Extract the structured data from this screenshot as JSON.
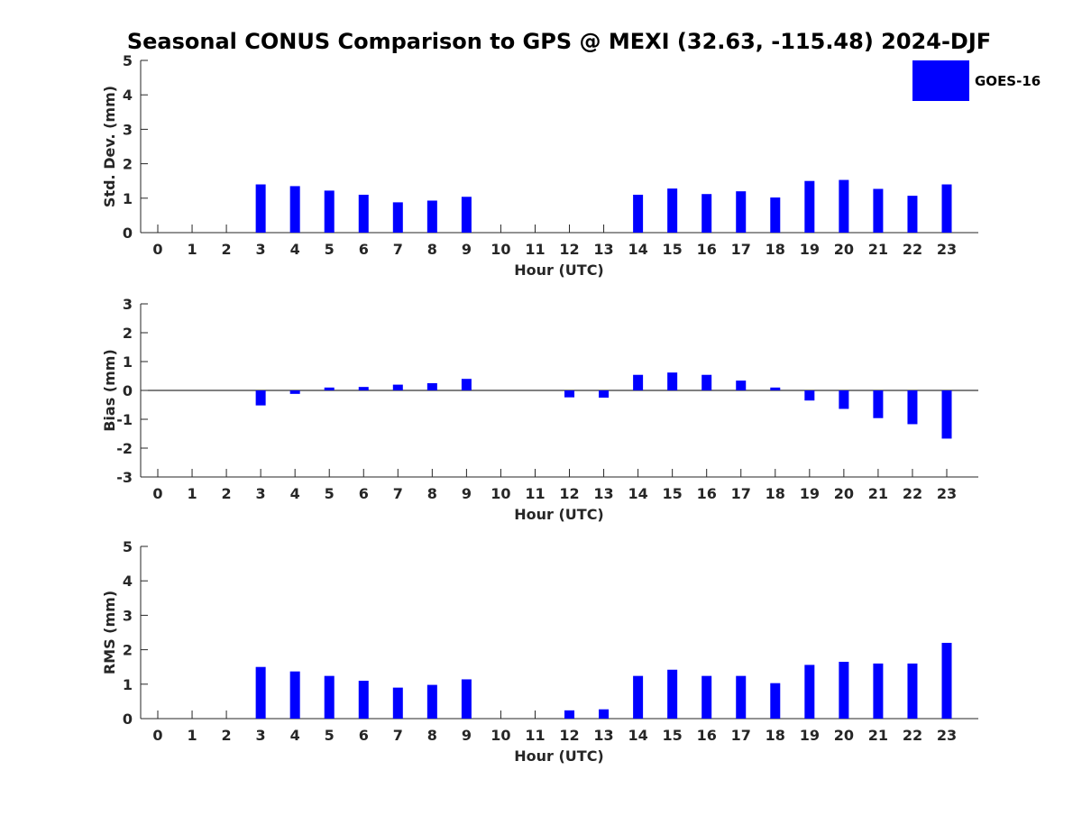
{
  "title": "Seasonal CONUS Comparison to GPS @ MEXI (32.63, -115.48) 2024-DJF",
  "legend": {
    "label": "GOES-16",
    "placement": "top-right"
  },
  "colors": {
    "bar": "#0000ff",
    "axis": "#262626",
    "title": "#000000"
  },
  "chart_data": [
    {
      "type": "bar",
      "xlabel": "Hour (UTC)",
      "ylabel": "Std. Dev. (mm)",
      "ylim": [
        0,
        5
      ],
      "yticks": [
        0,
        1,
        2,
        3,
        4,
        5
      ],
      "categories": [
        "0",
        "1",
        "2",
        "3",
        "4",
        "5",
        "6",
        "7",
        "8",
        "9",
        "10",
        "11",
        "12",
        "13",
        "14",
        "15",
        "16",
        "17",
        "18",
        "19",
        "20",
        "21",
        "22",
        "23"
      ],
      "series": [
        {
          "name": "GOES-16",
          "values": [
            null,
            null,
            null,
            1.4,
            1.35,
            1.22,
            1.1,
            0.88,
            0.93,
            1.04,
            null,
            null,
            null,
            null,
            1.1,
            1.28,
            1.12,
            1.2,
            1.02,
            1.5,
            1.53,
            1.27,
            1.07,
            1.4
          ]
        }
      ],
      "grid": false
    },
    {
      "type": "bar",
      "xlabel": "Hour (UTC)",
      "ylabel": "Bias (mm)",
      "ylim": [
        -3,
        3
      ],
      "yticks": [
        -3,
        -2,
        -1,
        0,
        1,
        2,
        3
      ],
      "categories": [
        "0",
        "1",
        "2",
        "3",
        "4",
        "5",
        "6",
        "7",
        "8",
        "9",
        "10",
        "11",
        "12",
        "13",
        "14",
        "15",
        "16",
        "17",
        "18",
        "19",
        "20",
        "21",
        "22",
        "23"
      ],
      "series": [
        {
          "name": "GOES-16",
          "values": [
            null,
            null,
            null,
            -0.52,
            -0.12,
            0.1,
            0.12,
            0.2,
            0.25,
            0.4,
            null,
            null,
            -0.24,
            -0.25,
            0.54,
            0.62,
            0.54,
            0.34,
            0.1,
            -0.35,
            -0.64,
            -0.96,
            -1.17,
            -1.67
          ]
        }
      ],
      "grid": false
    },
    {
      "type": "bar",
      "xlabel": "Hour (UTC)",
      "ylabel": "RMS (mm)",
      "ylim": [
        0,
        5
      ],
      "yticks": [
        0,
        1,
        2,
        3,
        4,
        5
      ],
      "categories": [
        "0",
        "1",
        "2",
        "3",
        "4",
        "5",
        "6",
        "7",
        "8",
        "9",
        "10",
        "11",
        "12",
        "13",
        "14",
        "15",
        "16",
        "17",
        "18",
        "19",
        "20",
        "21",
        "22",
        "23"
      ],
      "series": [
        {
          "name": "GOES-16",
          "values": [
            null,
            null,
            null,
            1.5,
            1.37,
            1.24,
            1.1,
            0.9,
            0.98,
            1.14,
            null,
            null,
            0.24,
            0.27,
            1.24,
            1.42,
            1.24,
            1.24,
            1.03,
            1.56,
            1.65,
            1.6,
            1.6,
            2.2
          ]
        }
      ],
      "grid": false
    }
  ]
}
